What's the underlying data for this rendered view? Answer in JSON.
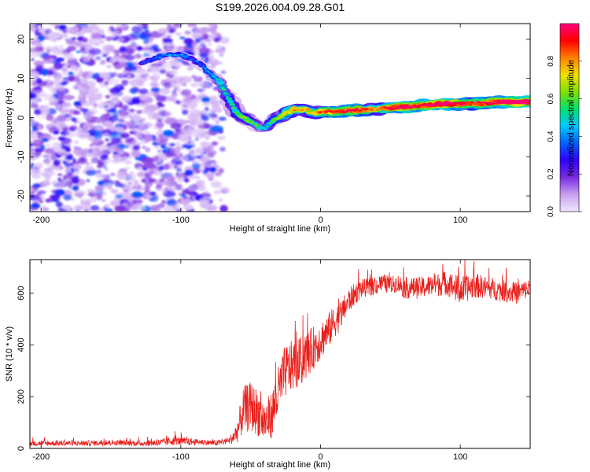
{
  "chart_data": [
    {
      "type": "heatmap",
      "title": "S199.2026.004.09.28.G01",
      "xlabel": "Height of straight line (km)",
      "ylabel": "Frequency (Hz)",
      "xlim": [
        -208,
        150
      ],
      "ylim": [
        -24,
        24
      ],
      "xticks": [
        -200,
        -100,
        0,
        100
      ],
      "xtick_labels": [
        "-200",
        "-100",
        "0",
        "100"
      ],
      "yticks": [
        -20,
        -10,
        0,
        10,
        20
      ],
      "ytick_labels": [
        "-20",
        "-10",
        "0",
        "10",
        "20"
      ],
      "colorbar": {
        "label": "Normalized spectral amplitude",
        "range": [
          0,
          1
        ],
        "ticks": [
          0,
          0.2,
          0.4,
          0.6,
          0.8
        ],
        "tick_labels": [
          "0.0",
          "0.2",
          "0.4",
          "0.6",
          "0.8"
        ],
        "stops": [
          "#f0e6ff",
          "#c8a0f0",
          "#7a2be0",
          "#3000ff",
          "#0060ff",
          "#00c8ff",
          "#00e070",
          "#80e000",
          "#f0e000",
          "#ff8000",
          "#ff0000",
          "#ff0080"
        ]
      },
      "ridge": {
        "x": [
          -128,
          -110,
          -100,
          -92,
          -84,
          -78,
          -72,
          -66,
          -60,
          -55,
          -50,
          -45,
          -40,
          -35,
          -30,
          -25,
          -20,
          -15,
          -10,
          -5,
          0,
          10,
          20,
          30,
          40,
          50,
          60,
          70,
          80,
          90,
          100,
          110,
          120,
          130,
          140,
          150
        ],
        "freq": [
          14,
          16,
          16,
          15,
          13,
          11,
          9,
          5,
          1,
          0,
          -1,
          -2,
          -3,
          -1,
          0,
          1,
          2,
          2,
          2,
          1,
          1.5,
          1.5,
          1.8,
          2,
          2.2,
          2.5,
          2.7,
          3,
          3.3,
          3.5,
          3.5,
          3.6,
          3.8,
          4,
          4,
          4
        ],
        "amplitude": [
          0.2,
          0.3,
          0.3,
          0.25,
          0.3,
          0.35,
          0.4,
          0.45,
          0.5,
          0.55,
          0.5,
          0.45,
          0.4,
          0.5,
          0.6,
          0.65,
          0.7,
          0.7,
          0.7,
          0.65,
          0.75,
          0.8,
          0.85,
          0.8,
          0.7,
          0.85,
          0.9,
          0.85,
          0.9,
          0.95,
          0.85,
          0.8,
          0.85,
          0.9,
          0.95,
          0.95
        ]
      }
    },
    {
      "type": "line",
      "xlabel": "Height of straight line (km)",
      "ylabel": "SNR (10 * v/v)",
      "xlim": [
        -208,
        150
      ],
      "ylim": [
        0,
        730
      ],
      "xticks": [
        -200,
        -100,
        0,
        100
      ],
      "xtick_labels": [
        "-200",
        "-100",
        "0",
        "100"
      ],
      "yticks": [
        0,
        200,
        400,
        600
      ],
      "ytick_labels": [
        "0",
        "200",
        "400",
        "600"
      ],
      "color": "#e8201c",
      "series": [
        {
          "name": "SNR",
          "x": [
            -208,
            -190,
            -170,
            -150,
            -130,
            -115,
            -105,
            -95,
            -85,
            -75,
            -65,
            -60,
            -55,
            -50,
            -45,
            -40,
            -35,
            -30,
            -25,
            -20,
            -15,
            -10,
            -5,
            0,
            5,
            10,
            15,
            20,
            25,
            30,
            35,
            40,
            45,
            50,
            55,
            60,
            70,
            80,
            90,
            100,
            110,
            120,
            130,
            140,
            150
          ],
          "values": [
            20,
            20,
            20,
            22,
            20,
            22,
            30,
            25,
            25,
            20,
            30,
            60,
            150,
            160,
            140,
            100,
            130,
            220,
            300,
            320,
            330,
            360,
            390,
            420,
            450,
            490,
            520,
            570,
            600,
            620,
            620,
            630,
            640,
            630,
            640,
            620,
            620,
            630,
            640,
            610,
            630,
            620,
            610,
            600,
            620
          ],
          "spread": [
            15,
            15,
            15,
            15,
            15,
            20,
            25,
            20,
            15,
            15,
            20,
            60,
            130,
            140,
            130,
            120,
            130,
            150,
            150,
            140,
            140,
            130,
            120,
            110,
            100,
            90,
            80,
            70,
            60,
            50,
            50,
            50,
            50,
            50,
            50,
            60,
            60,
            60,
            70,
            80,
            70,
            60,
            60,
            60,
            50
          ]
        }
      ]
    }
  ]
}
